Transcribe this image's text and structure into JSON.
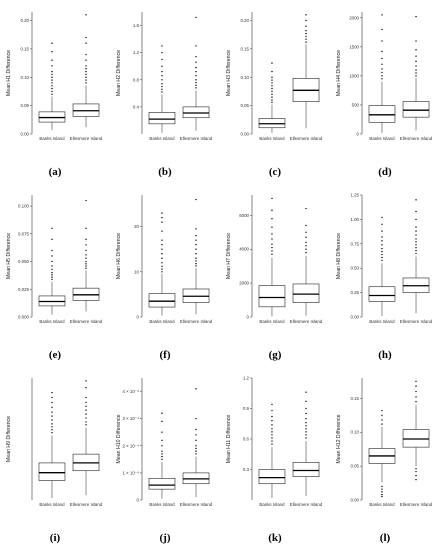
{
  "figure": {
    "panel_labels": [
      "(a)",
      "(b)",
      "(c)",
      "(d)",
      "(e)",
      "(f)",
      "(g)",
      "(h)",
      "(i)",
      "(j)",
      "(k)",
      "(l)"
    ]
  },
  "colors": {
    "box_fill": "#ffffff",
    "box_stroke": "#222222",
    "median": "#000000",
    "outlier": "#000000",
    "axis": "#333333"
  },
  "chart_data": [
    {
      "id": "a",
      "type": "box",
      "title": "",
      "xlabel": "",
      "ylabel": "Mean H1 Difference",
      "categories": [
        "Banks Island",
        "Ellesmere Island"
      ],
      "ylim": [
        0,
        0.215
      ],
      "ticks": [
        0,
        0.05,
        0.1,
        0.15,
        0.2
      ],
      "tick_labels": [
        "0.00",
        "0.05",
        "0.10",
        "0.15",
        "0.20"
      ],
      "boxes": [
        {
          "min": 0.007,
          "q1": 0.021,
          "median": 0.029,
          "q3": 0.039,
          "max": 0.066,
          "outliers": [
            0.07,
            0.075,
            0.08,
            0.085,
            0.09,
            0.095,
            0.1,
            0.105,
            0.11,
            0.12,
            0.13,
            0.145,
            0.16
          ]
        },
        {
          "min": 0.012,
          "q1": 0.031,
          "median": 0.041,
          "q3": 0.053,
          "max": 0.085,
          "outliers": [
            0.09,
            0.095,
            0.1,
            0.105,
            0.11,
            0.115,
            0.12,
            0.13,
            0.14,
            0.16,
            0.17,
            0.21
          ]
        }
      ]
    },
    {
      "id": "b",
      "type": "box",
      "title": "",
      "xlabel": "",
      "ylabel": "Mean H2 Difference",
      "categories": [
        "Banks Island",
        "Ellesmere Island"
      ],
      "ylim": [
        0,
        1.8
      ],
      "ticks": [
        0.4,
        0.8,
        1.2,
        1.6
      ],
      "tick_labels": [
        "0.4",
        "0.8",
        "1.2",
        "1.6"
      ],
      "boxes": [
        {
          "min": 0.02,
          "q1": 0.15,
          "median": 0.22,
          "q3": 0.32,
          "max": 0.58,
          "outliers": [
            0.62,
            0.66,
            0.7,
            0.74,
            0.8,
            0.86,
            0.92,
            1.0,
            1.1,
            1.2,
            1.3
          ]
        },
        {
          "min": 0.05,
          "q1": 0.24,
          "median": 0.31,
          "q3": 0.4,
          "max": 0.64,
          "outliers": [
            0.68,
            0.72,
            0.76,
            0.8,
            0.86,
            0.92,
            0.98,
            1.06,
            1.14,
            1.3,
            1.72
          ]
        }
      ]
    },
    {
      "id": "c",
      "type": "box",
      "title": "",
      "xlabel": "",
      "ylabel": "Mean H3 Difference",
      "categories": [
        "Banks Island",
        "Ellesmere Island"
      ],
      "ylim": [
        0,
        0.215
      ],
      "ticks": [
        0,
        0.05,
        0.1,
        0.15,
        0.2
      ],
      "tick_labels": [
        "0.00",
        "0.05",
        "0.10",
        "0.15",
        "0.20"
      ],
      "boxes": [
        {
          "min": 0.002,
          "q1": 0.011,
          "median": 0.018,
          "q3": 0.027,
          "max": 0.052,
          "outliers": [
            0.056,
            0.06,
            0.065,
            0.07,
            0.075,
            0.08,
            0.085,
            0.09,
            0.095,
            0.1,
            0.11,
            0.125
          ]
        },
        {
          "min": 0.01,
          "q1": 0.057,
          "median": 0.077,
          "q3": 0.098,
          "max": 0.158,
          "outliers": [
            0.162,
            0.167,
            0.172,
            0.177,
            0.182,
            0.19,
            0.2,
            0.21
          ]
        }
      ]
    },
    {
      "id": "d",
      "type": "box",
      "title": "",
      "xlabel": "",
      "ylabel": "Mean H4 Difference",
      "categories": [
        "Banks Island",
        "Ellesmere Island"
      ],
      "ylim": [
        0,
        2100
      ],
      "ticks": [
        0,
        500,
        1000,
        1500,
        2000
      ],
      "tick_labels": [
        "0",
        "500",
        "1000",
        "1500",
        "2000"
      ],
      "boxes": [
        {
          "min": 20,
          "q1": 200,
          "median": 330,
          "q3": 490,
          "max": 900,
          "outliers": [
            950,
            1000,
            1060,
            1120,
            1200,
            1300,
            1420,
            1600,
            1800,
            2050
          ]
        },
        {
          "min": 60,
          "q1": 290,
          "median": 410,
          "q3": 560,
          "max": 960,
          "outliers": [
            1000,
            1050,
            1100,
            1170,
            1250,
            1340,
            1450,
            1600,
            2020
          ]
        }
      ]
    },
    {
      "id": "e",
      "type": "box",
      "title": "",
      "xlabel": "",
      "ylabel": "Mean H5 Difference",
      "categories": [
        "Banks Island",
        "Ellesmere Island"
      ],
      "ylim": [
        0,
        0.11
      ],
      "ticks": [
        0,
        0.025,
        0.05,
        0.075,
        0.1
      ],
      "tick_labels": [
        "0.000",
        "0.025",
        "0.050",
        "0.075",
        "0.100"
      ],
      "boxes": [
        {
          "min": 0.002,
          "q1": 0.01,
          "median": 0.014,
          "q3": 0.019,
          "max": 0.032,
          "outliers": [
            0.034,
            0.036,
            0.038,
            0.04,
            0.043,
            0.046,
            0.05,
            0.055,
            0.06,
            0.07,
            0.08
          ]
        },
        {
          "min": 0.005,
          "q1": 0.015,
          "median": 0.02,
          "q3": 0.026,
          "max": 0.042,
          "outliers": [
            0.044,
            0.046,
            0.048,
            0.05,
            0.053,
            0.056,
            0.06,
            0.065,
            0.07,
            0.08,
            0.105
          ]
        }
      ]
    },
    {
      "id": "f",
      "type": "box",
      "title": "",
      "xlabel": "",
      "ylabel": "Mean H6 Difference",
      "categories": [
        "Banks Island",
        "Ellesmere Island"
      ],
      "ylim": [
        0,
        27
      ],
      "ticks": [
        0,
        10,
        20
      ],
      "tick_labels": [
        "0",
        "10",
        "20"
      ],
      "boxes": [
        {
          "min": 0.3,
          "q1": 2.2,
          "median": 3.5,
          "q3": 5.2,
          "max": 9.5,
          "outliers": [
            10,
            10.6,
            11.2,
            12,
            13,
            14,
            15,
            16,
            17,
            19,
            21,
            22,
            23
          ]
        },
        {
          "min": 0.6,
          "q1": 3.2,
          "median": 4.6,
          "q3": 6.2,
          "max": 10.8,
          "outliers": [
            11.3,
            11.8,
            12.4,
            13,
            14,
            15,
            16,
            17,
            18,
            19.5,
            26
          ]
        }
      ]
    },
    {
      "id": "g",
      "type": "box",
      "title": "",
      "xlabel": "",
      "ylabel": "Mean H7 Difference",
      "categories": [
        "Banks Island",
        "Ellesmere Island"
      ],
      "ylim": [
        0,
        7200
      ],
      "ticks": [
        0,
        2000,
        4000,
        6000
      ],
      "tick_labels": [
        "0",
        "2000",
        "4000",
        "6000"
      ],
      "boxes": [
        {
          "min": 40,
          "q1": 600,
          "median": 1150,
          "q3": 1850,
          "max": 3500,
          "outliers": [
            3700,
            3900,
            4100,
            4300,
            4600,
            4900,
            5300,
            5800,
            6300,
            7000
          ]
        },
        {
          "min": 80,
          "q1": 850,
          "median": 1350,
          "q3": 1950,
          "max": 3600,
          "outliers": [
            3800,
            4000,
            4200,
            4400,
            4700,
            5000,
            5400,
            6400
          ]
        }
      ]
    },
    {
      "id": "h",
      "type": "box",
      "title": "",
      "xlabel": "",
      "ylabel": "Mean H8 Difference",
      "categories": [
        "Banks Island",
        "Ellesmere Island"
      ],
      "ylim": [
        0,
        1.25
      ],
      "ticks": [
        0,
        0.25,
        0.5,
        0.75,
        1.0,
        1.25
      ],
      "tick_labels": [
        "0.00",
        "0.25",
        "0.50",
        "0.75",
        "1.00",
        "1.25"
      ],
      "boxes": [
        {
          "min": 0.01,
          "q1": 0.16,
          "median": 0.22,
          "q3": 0.31,
          "max": 0.55,
          "outliers": [
            0.58,
            0.61,
            0.64,
            0.67,
            0.7,
            0.74,
            0.78,
            0.82,
            0.88,
            0.95,
            1.02
          ]
        },
        {
          "min": 0.04,
          "q1": 0.25,
          "median": 0.32,
          "q3": 0.4,
          "max": 0.62,
          "outliers": [
            0.65,
            0.68,
            0.71,
            0.74,
            0.77,
            0.8,
            0.84,
            0.88,
            0.92,
            1.0,
            1.08,
            1.2
          ]
        }
      ]
    },
    {
      "id": "i",
      "type": "box",
      "title": "",
      "xlabel": "",
      "ylabel": "Mean H9 Difference",
      "categories": [
        "Banks Island",
        "Ellesmere Island"
      ],
      "ylim": [
        0,
        1.25
      ],
      "ticks": [],
      "tick_labels": [],
      "boxes": [
        {
          "min": 0.02,
          "q1": 0.2,
          "median": 0.28,
          "q3": 0.38,
          "max": 0.66,
          "outliers": [
            0.69,
            0.72,
            0.75,
            0.78,
            0.82,
            0.86,
            0.9,
            0.95,
            1.0,
            1.05,
            1.1
          ]
        },
        {
          "min": 0.05,
          "q1": 0.3,
          "median": 0.38,
          "q3": 0.47,
          "max": 0.74,
          "outliers": [
            0.77,
            0.8,
            0.84,
            0.88,
            0.92,
            0.96,
            1.0,
            1.05,
            1.15,
            1.22
          ]
        }
      ]
    },
    {
      "id": "j",
      "type": "box",
      "title": "",
      "xlabel": "",
      "ylabel": "Mean H10 Difference",
      "categories": [
        "Banks Island",
        "Ellesmere Island"
      ],
      "ylim": [
        0,
        0.00045
      ],
      "ticks": [
        0,
        0.0001,
        0.0002,
        0.0003,
        0.0004
      ],
      "tick_labels": [
        "0",
        "1 × 10⁻⁴",
        "2 × 10⁻⁴",
        "3 × 10⁻⁴",
        "4 × 10⁻⁴"
      ],
      "boxes": [
        {
          "min": 5e-06,
          "q1": 4e-05,
          "median": 5.5e-05,
          "q3": 8e-05,
          "max": 0.00014,
          "outliers": [
            0.00015,
            0.00016,
            0.00017,
            0.00018,
            0.0002,
            0.00022,
            0.00025,
            0.00029,
            0.00032
          ]
        },
        {
          "min": 1e-05,
          "q1": 6e-05,
          "median": 7.8e-05,
          "q3": 0.0001,
          "max": 0.00016,
          "outliers": [
            0.00017,
            0.00018,
            0.00019,
            0.0002,
            0.00022,
            0.00024,
            0.00026,
            0.0003,
            0.00041
          ]
        }
      ]
    },
    {
      "id": "k",
      "type": "box",
      "title": "",
      "xlabel": "",
      "ylabel": "Mean H11 Difference",
      "categories": [
        "Banks Island",
        "Ellesmere Island"
      ],
      "ylim": [
        0,
        1.2
      ],
      "ticks": [
        0.3,
        0.6,
        0.9,
        1.2
      ],
      "tick_labels": [
        "0.3",
        "0.6",
        "0.9",
        "1.2"
      ],
      "boxes": [
        {
          "min": 0.02,
          "q1": 0.16,
          "median": 0.22,
          "q3": 0.3,
          "max": 0.52,
          "outliers": [
            0.55,
            0.58,
            0.61,
            0.64,
            0.67,
            0.7,
            0.74,
            0.78,
            0.82,
            0.88,
            0.94
          ]
        },
        {
          "min": 0.04,
          "q1": 0.23,
          "median": 0.29,
          "q3": 0.37,
          "max": 0.58,
          "outliers": [
            0.61,
            0.64,
            0.67,
            0.7,
            0.73,
            0.76,
            0.8,
            0.85,
            0.9,
            0.97,
            1.06
          ]
        }
      ]
    },
    {
      "id": "l",
      "type": "box",
      "title": "",
      "xlabel": "",
      "ylabel": "Mean H12 Difference",
      "categories": [
        "Banks Island",
        "Ellesmere Island"
      ],
      "ylim": [
        0,
        0.18
      ],
      "ticks": [
        0,
        0.05,
        0.1,
        0.15
      ],
      "tick_labels": [
        "0.00",
        "0.05",
        "0.10",
        "0.15"
      ],
      "boxes": [
        {
          "min": 0.026,
          "q1": 0.054,
          "median": 0.065,
          "q3": 0.076,
          "max": 0.108,
          "outliers": [
            0.005,
            0.008,
            0.012,
            0.016,
            0.02,
            0.112,
            0.118,
            0.125,
            0.132
          ]
        },
        {
          "min": 0.05,
          "q1": 0.078,
          "median": 0.09,
          "q3": 0.104,
          "max": 0.14,
          "outliers": [
            0.03,
            0.036,
            0.042,
            0.046,
            0.145,
            0.152,
            0.16,
            0.168,
            0.175
          ]
        }
      ]
    }
  ]
}
